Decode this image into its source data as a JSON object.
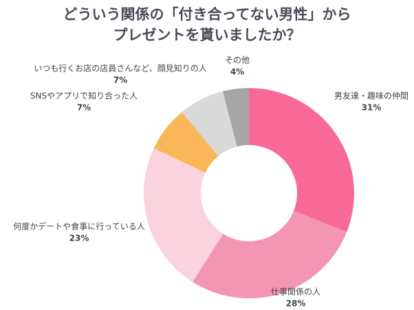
{
  "chart_data": {
    "type": "donut",
    "title": [
      "どういう関係の「付き合ってない男性」から",
      "プレゼントを貰いましたか？"
    ],
    "categories": [
      "男友達・趣味の仲間",
      "仕事関係の人",
      "何度かデートや食事に行っている人",
      "SNSやアプリで知り合った人",
      "いつも行くお店の店員さんなど、顔見知りの人",
      "その他"
    ],
    "values": [
      31,
      28,
      23,
      7,
      7,
      4
    ],
    "value_labels": [
      "31%",
      "28%",
      "23%",
      "7%",
      "7%",
      "4%"
    ],
    "colors": [
      "#f76a97",
      "#f595b4",
      "#fbd3df",
      "#f9b75a",
      "#d9d9d9",
      "#a6a6a6"
    ]
  }
}
